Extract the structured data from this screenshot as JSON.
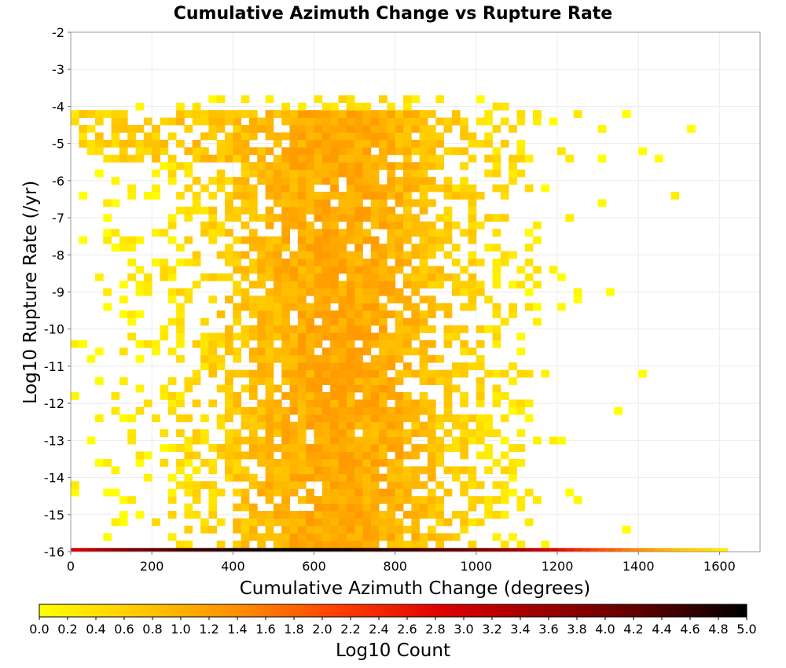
{
  "chart_data": {
    "type": "heatmap",
    "title": "Cumulative Azimuth Change vs Rupture Rate",
    "xlabel": "Cumulative Azimuth Change (degrees)",
    "ylabel": "Log10 Rupture Rate (/yr)",
    "xlim": [
      0,
      1700
    ],
    "ylim": [
      -16,
      -2
    ],
    "xticks": [
      0,
      200,
      400,
      600,
      800,
      1000,
      1200,
      1400,
      1600
    ],
    "yticks": [
      -2,
      -3,
      -4,
      -5,
      -6,
      -7,
      -8,
      -9,
      -10,
      -11,
      -12,
      -13,
      -14,
      -15,
      -16
    ],
    "grid": true,
    "bin_width_x": 20,
    "bin_height_y": 0.2,
    "colorbar": {
      "label": "Log10 Count",
      "range": [
        0.0,
        5.0
      ],
      "ticks": [
        "0.0",
        "0.2",
        "0.4",
        "0.6",
        "0.8",
        "1.0",
        "1.2",
        "1.4",
        "1.6",
        "1.8",
        "2.0",
        "2.2",
        "2.4",
        "2.6",
        "2.8",
        "3.0",
        "3.2",
        "3.4",
        "3.6",
        "3.8",
        "4.0",
        "4.2",
        "4.4",
        "4.6",
        "4.8",
        "5.0"
      ],
      "placement": "bottom",
      "colors": [
        "#ffff00",
        "#ffc800",
        "#ff8c00",
        "#ff3c00",
        "#dc0000",
        "#9b0000",
        "#5a0000",
        "#000000"
      ]
    },
    "populated_region": {
      "x_range": [
        0,
        1620
      ],
      "y_range": [
        -16.0,
        -3.8
      ],
      "typical_log10_count": [
        0.0,
        1.2
      ]
    },
    "bottom_row_y": -16.0,
    "bottom_row": {
      "x": [
        20,
        60,
        100,
        140,
        180,
        220,
        260,
        300,
        340,
        380,
        420,
        460,
        500,
        540,
        580,
        620,
        660,
        700,
        740,
        780,
        820,
        860,
        900,
        940,
        980,
        1020,
        1060,
        1100,
        1140,
        1180,
        1220,
        1260,
        1300,
        1340,
        1380,
        1420,
        1460,
        1500,
        1540,
        1580,
        1610
      ],
      "log10_count": [
        2.9,
        3.3,
        3.6,
        3.8,
        4.0,
        4.2,
        4.4,
        4.5,
        4.6,
        4.7,
        4.8,
        4.85,
        4.9,
        4.9,
        4.9,
        4.85,
        4.8,
        4.75,
        4.7,
        4.6,
        4.5,
        4.4,
        4.3,
        4.2,
        4.1,
        3.9,
        3.7,
        3.5,
        3.2,
        2.9,
        2.6,
        2.3,
        2.0,
        1.8,
        1.5,
        1.3,
        1.0,
        0.8,
        0.6,
        0.4,
        0.2
      ]
    }
  }
}
